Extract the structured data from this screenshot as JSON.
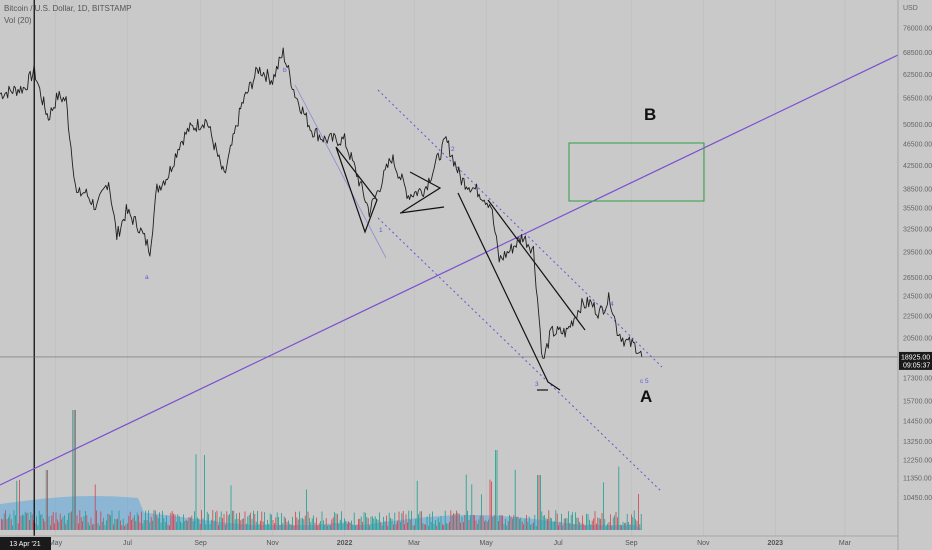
{
  "header": {
    "symbol_line": "Bitcoin / U.S. Dollar, 1D, BITSTAMP",
    "volume_line": "Vol (20)"
  },
  "price_axis": {
    "currency": "USD",
    "labels": [
      "76000.00",
      "68500.00",
      "62500.00",
      "56500.00",
      "50500.00",
      "46500.00",
      "42500.00",
      "38500.00",
      "35500.00",
      "32500.00",
      "29500.00",
      "26500.00",
      "24500.00",
      "22500.00",
      "20500.00",
      "17300.00",
      "15700.00",
      "14450.00",
      "13250.00",
      "12250.00",
      "11350.00",
      "10450.00"
    ]
  },
  "current_price": {
    "value": "18925.00",
    "countdown": "09:05:37"
  },
  "time_axis": {
    "labels": [
      "May",
      "Jul",
      "Sep",
      "Nov",
      "2022",
      "Mar",
      "May",
      "Jul",
      "Sep",
      "Nov",
      "2023",
      "Mar"
    ],
    "crosshair_label": "13 Apr '21"
  },
  "annotations": {
    "text_labels": [
      "B",
      "A"
    ],
    "wave_labels": [
      "a",
      "b",
      "1",
      "2",
      "3",
      "4",
      "c 5"
    ]
  },
  "colors": {
    "background": "#c9c9c9",
    "price_line": "#1f1f1f",
    "channel": "#5b5bd6",
    "trendline": "#7b4fd0",
    "target_box": "#2e9e44",
    "volume_up": "#1e9d91",
    "volume_down": "#d2424b",
    "volume_ma": "#5aa6dc"
  },
  "chart_data": {
    "type": "line",
    "title": "Bitcoin / U.S. Dollar, 1D, BITSTAMP",
    "xlabel": "",
    "ylabel": "",
    "x_range": [
      "2021-03-15",
      "2023-04-15"
    ],
    "ylim": [
      9500,
      82000
    ],
    "y_scale": "log",
    "last_price": 18925,
    "series": [
      {
        "x": [
          "2021-03-15",
          "2021-03-28",
          "2021-04-05",
          "2021-04-13",
          "2021-04-20",
          "2021-04-25",
          "2021-05-03",
          "2021-05-10",
          "2021-05-13",
          "2021-05-19",
          "2021-05-26",
          "2021-06-05",
          "2021-06-15",
          "2021-06-22",
          "2021-06-30",
          "2021-07-10",
          "2021-07-20",
          "2021-07-26",
          "2021-08-05",
          "2021-08-14",
          "2021-08-22",
          "2021-09-06",
          "2021-09-21",
          "2021-10-06",
          "2021-10-20",
          "2021-11-01",
          "2021-11-10",
          "2021-11-20",
          "2021-12-04",
          "2021-12-15",
          "2022-01-01",
          "2022-01-10",
          "2022-01-22",
          "2022-02-10",
          "2022-02-24",
          "2022-03-10",
          "2022-03-28",
          "2022-04-10",
          "2022-04-25",
          "2022-05-05",
          "2022-05-12",
          "2022-05-20",
          "2022-06-01",
          "2022-06-10",
          "2022-06-18",
          "2022-06-25",
          "2022-07-08",
          "2022-07-20",
          "2022-07-28",
          "2022-08-05",
          "2022-08-14",
          "2022-08-20",
          "2022-08-27",
          "2022-09-05",
          "2022-09-10"
        ],
        "y": [
          57500,
          58500,
          59000,
          63500,
          56000,
          52000,
          57000,
          56000,
          48500,
          37500,
          38000,
          35500,
          40000,
          31500,
          35000,
          33000,
          29800,
          38500,
          41000,
          46500,
          49500,
          51500,
          40500,
          55000,
          64000,
          61000,
          68500,
          57500,
          49500,
          47500,
          47300,
          41800,
          35000,
          44000,
          37500,
          38500,
          47300,
          40000,
          38000,
          36000,
          28500,
          29500,
          31500,
          29800,
          18500,
          21000,
          21000,
          23500,
          23800,
          22800,
          24300,
          21200,
          20200,
          19800,
          18925
        ]
      }
    ]
  }
}
